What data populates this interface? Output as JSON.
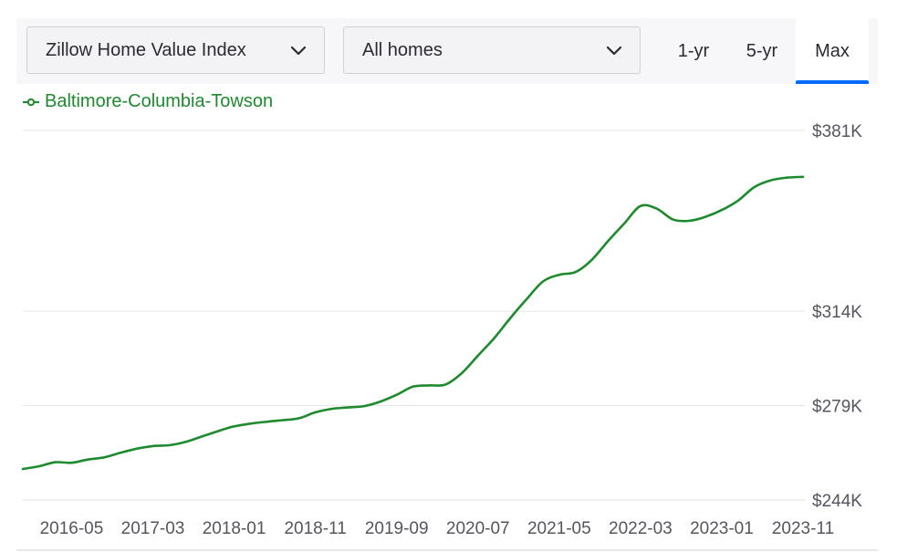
{
  "toolbar": {
    "metric_dropdown": {
      "selected": "Zillow Home Value Index",
      "icon": "chevron-down-icon"
    },
    "type_dropdown": {
      "selected": "All homes",
      "icon": "chevron-down-icon"
    },
    "range_tabs": [
      {
        "label": "1-yr",
        "active": false
      },
      {
        "label": "5-yr",
        "active": false
      },
      {
        "label": "Max",
        "active": true
      }
    ],
    "accent_color": "#006aff"
  },
  "chart_data": {
    "type": "line",
    "title": "",
    "xlabel": "",
    "ylabel": "",
    "legend": "top-left",
    "grid": true,
    "y_ticks": [
      {
        "value": 244,
        "label": "$244K"
      },
      {
        "value": 279,
        "label": "$279K"
      },
      {
        "value": 314,
        "label": "$314K"
      },
      {
        "value": 381,
        "label": "$381K"
      }
    ],
    "ylim": [
      244,
      381
    ],
    "x_ticks": [
      "2016-05",
      "2017-03",
      "2018-01",
      "2018-11",
      "2019-09",
      "2020-07",
      "2021-05",
      "2022-03",
      "2023-01",
      "2023-11"
    ],
    "xlim": [
      "2015-11",
      "2023-11"
    ],
    "series": [
      {
        "name": "Baltimore-Columbia-Towson",
        "color": "#1e8a2e",
        "points": [
          [
            "2015-11",
            255.5
          ],
          [
            "2016-01",
            256.5
          ],
          [
            "2016-03",
            258.0
          ],
          [
            "2016-05",
            257.8
          ],
          [
            "2016-07",
            259.0
          ],
          [
            "2016-09",
            259.8
          ],
          [
            "2016-11",
            261.5
          ],
          [
            "2017-01",
            263.0
          ],
          [
            "2017-03",
            264.0
          ],
          [
            "2017-05",
            264.3
          ],
          [
            "2017-07",
            265.5
          ],
          [
            "2017-09",
            267.5
          ],
          [
            "2017-11",
            269.5
          ],
          [
            "2017-12",
            270.5
          ],
          [
            "2018-01",
            271.3
          ],
          [
            "2018-03",
            272.3
          ],
          [
            "2018-05",
            273.0
          ],
          [
            "2018-07",
            273.6
          ],
          [
            "2018-09",
            274.3
          ],
          [
            "2018-11",
            276.5
          ],
          [
            "2019-01",
            277.8
          ],
          [
            "2019-03",
            278.3
          ],
          [
            "2019-05",
            278.8
          ],
          [
            "2019-07",
            280.5
          ],
          [
            "2019-09",
            283.0
          ],
          [
            "2019-11",
            286.0
          ],
          [
            "2020-01",
            286.5
          ],
          [
            "2020-03",
            286.8
          ],
          [
            "2020-05",
            291.0
          ],
          [
            "2020-07",
            297.5
          ],
          [
            "2020-09",
            304.0
          ],
          [
            "2020-11",
            311.5
          ],
          [
            "2021-01",
            318.5
          ],
          [
            "2021-03",
            325.0
          ],
          [
            "2021-05",
            327.5
          ],
          [
            "2021-07",
            328.5
          ],
          [
            "2021-09",
            333.0
          ],
          [
            "2021-11",
            340.0
          ],
          [
            "2022-01",
            346.5
          ],
          [
            "2022-03",
            353.0
          ],
          [
            "2022-05",
            352.0
          ],
          [
            "2022-07",
            348.0
          ],
          [
            "2022-09",
            347.5
          ],
          [
            "2022-11",
            349.0
          ],
          [
            "2023-01",
            351.5
          ],
          [
            "2023-03",
            355.0
          ],
          [
            "2023-05",
            360.0
          ],
          [
            "2023-07",
            362.5
          ],
          [
            "2023-09",
            363.5
          ],
          [
            "2023-11",
            363.8
          ]
        ]
      }
    ]
  }
}
